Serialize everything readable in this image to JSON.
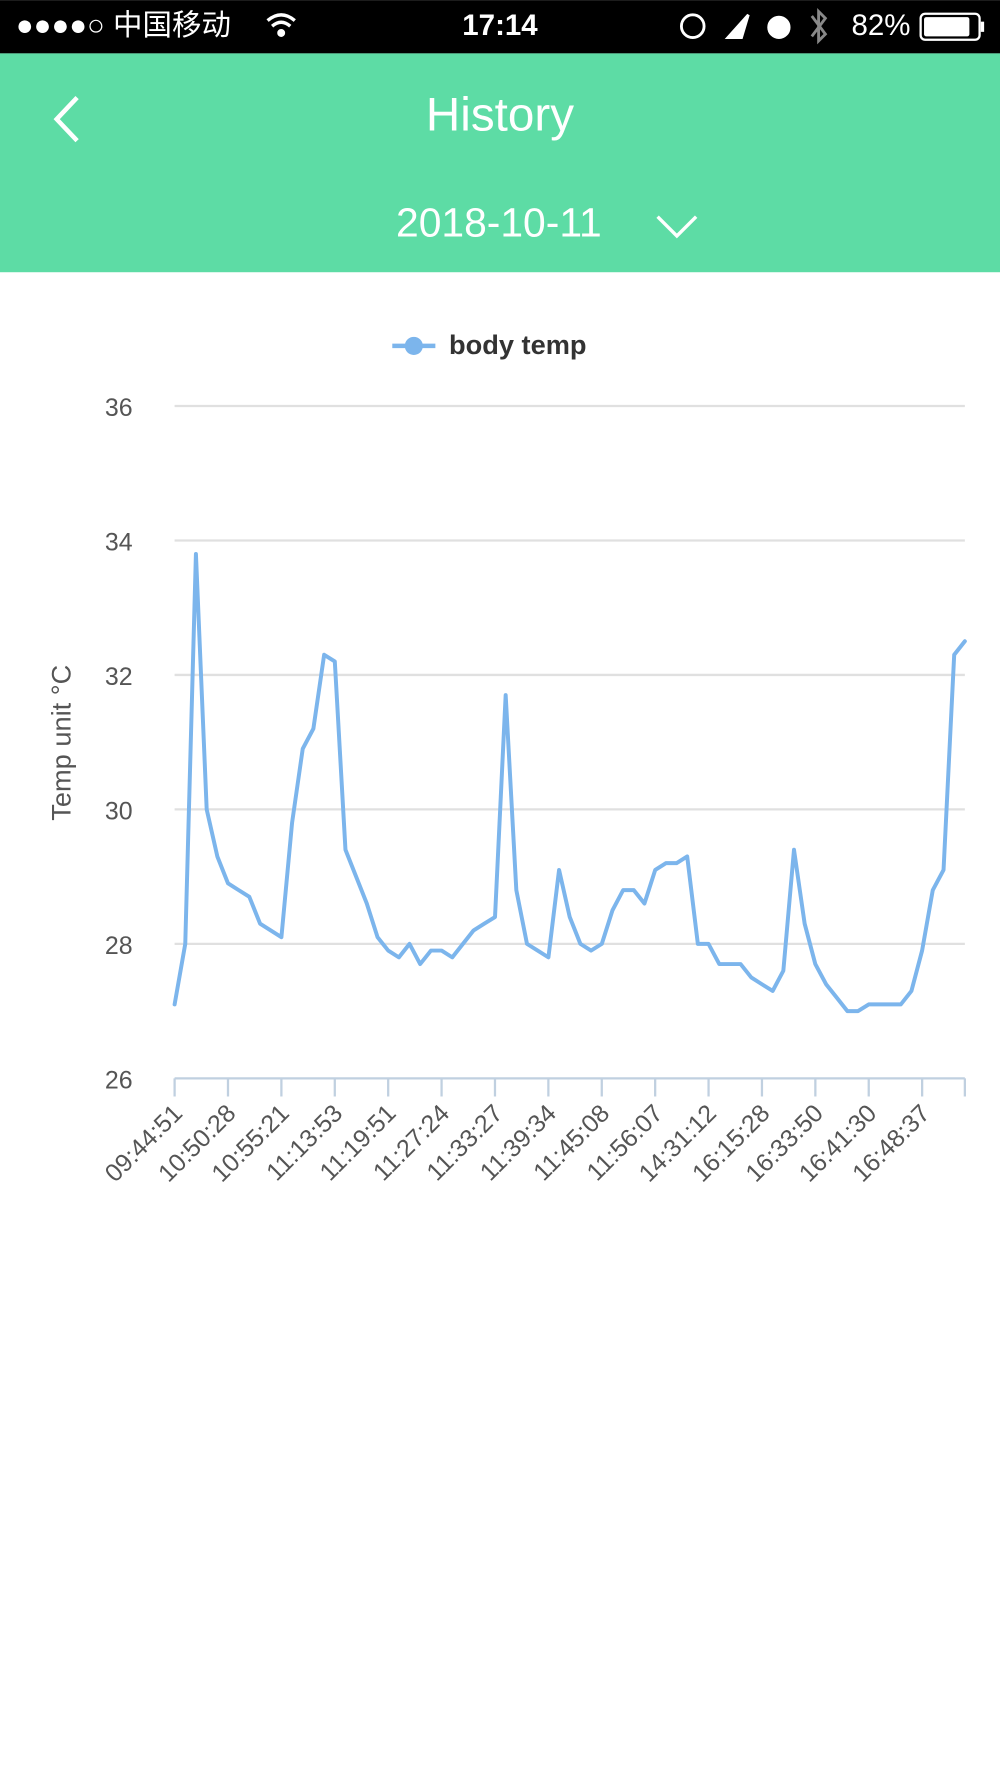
{
  "status_bar": {
    "carrier": "●●●●○ 中国移动",
    "time": "17:14",
    "battery": "82%"
  },
  "header": {
    "title": "History",
    "date": "2018-10-11"
  },
  "chart_data": {
    "type": "line",
    "y_label": "Temp unit °C",
    "categories": [
      "09:44:51",
      null,
      null,
      null,
      null,
      "10:50:28",
      null,
      null,
      null,
      null,
      "10:55:21",
      null,
      null,
      null,
      null,
      "11:13:53",
      null,
      null,
      null,
      null,
      "11:19:51",
      null,
      null,
      null,
      null,
      "11:27:24",
      null,
      null,
      null,
      null,
      "11:33:27",
      null,
      null,
      null,
      null,
      "11:39:34",
      null,
      null,
      null,
      null,
      "11:45:08",
      null,
      null,
      null,
      null,
      "11:56:07",
      null,
      null,
      null,
      null,
      "14:31:12",
      null,
      null,
      null,
      null,
      "16:15:28",
      null,
      null,
      null,
      null,
      "16:33:50",
      null,
      null,
      null,
      null,
      "16:41:30",
      null,
      null,
      null,
      null,
      "16:48:37",
      null,
      null,
      null,
      null
    ],
    "series": [
      {
        "name": "body temp",
        "color": "#7cb5ec",
        "values": [
          27.1,
          28.0,
          33.8,
          30.0,
          29.3,
          28.9,
          28.8,
          28.7,
          28.3,
          28.2,
          28.1,
          29.8,
          30.9,
          31.2,
          32.3,
          32.2,
          29.4,
          29.0,
          28.6,
          28.1,
          27.9,
          27.8,
          28.0,
          27.7,
          27.9,
          27.9,
          27.8,
          28.0,
          28.2,
          28.3,
          28.4,
          31.7,
          28.8,
          28.0,
          27.9,
          27.8,
          29.1,
          28.4,
          28.0,
          27.9,
          28.0,
          28.5,
          28.8,
          28.8,
          28.6,
          29.1,
          29.2,
          29.2,
          29.3,
          28.0,
          28.0,
          27.7,
          27.7,
          27.7,
          27.5,
          27.4,
          27.3,
          27.6,
          29.4,
          28.3,
          27.7,
          27.4,
          27.2,
          27.0,
          27.0,
          27.1,
          27.1,
          27.1,
          27.1,
          27.3,
          27.9,
          28.8,
          29.1,
          32.3,
          32.5
        ]
      }
    ],
    "ylim": [
      26,
      36
    ],
    "yticks": [
      26,
      28,
      30,
      32,
      34,
      36
    ],
    "grid": true
  }
}
